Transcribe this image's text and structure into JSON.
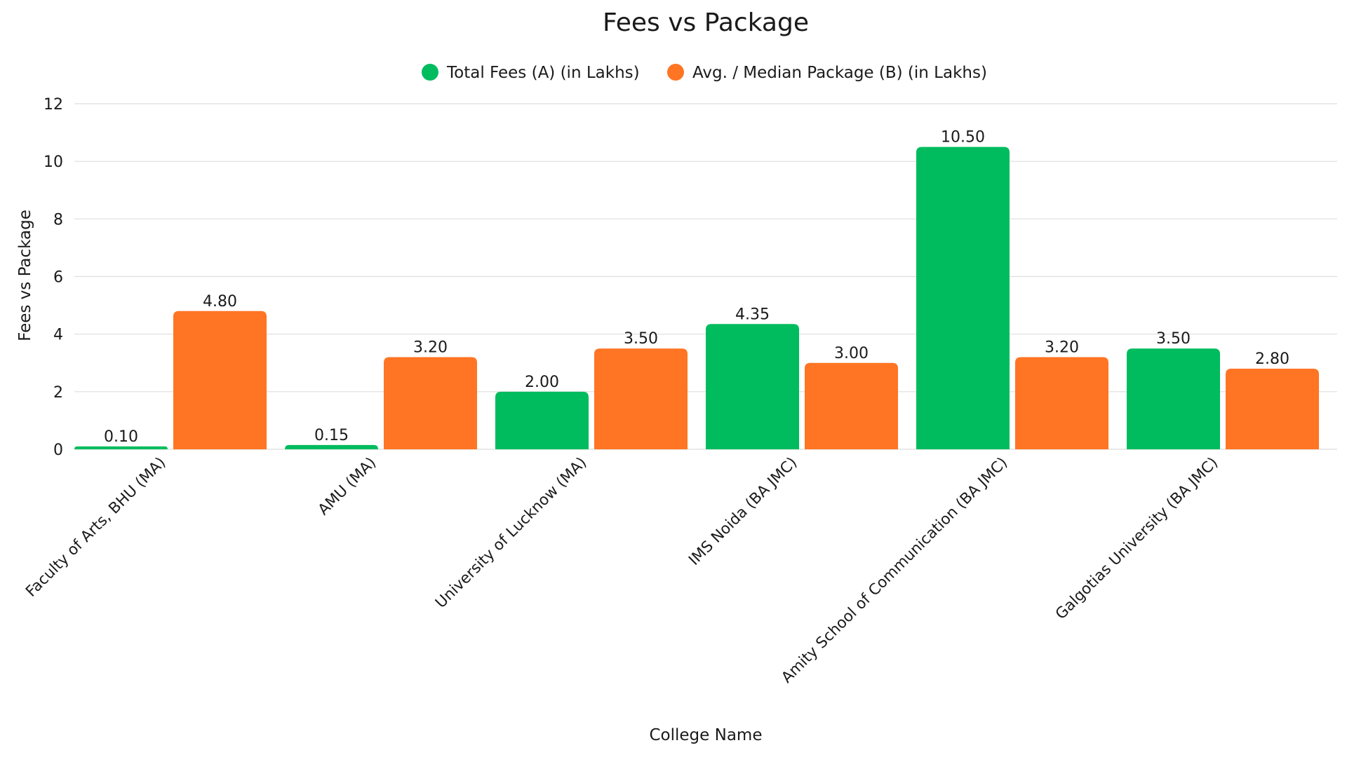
{
  "chart_data": {
    "type": "bar",
    "title": "Fees vs Package",
    "xlabel": "College Name",
    "ylabel": "Fees vs Package",
    "ylim": [
      0,
      12
    ],
    "yticks": [
      "0",
      "2",
      "4",
      "6",
      "8",
      "10",
      "12"
    ],
    "grid": true,
    "legend_position": "top-center",
    "categories": [
      "Faculty of Arts, BHU (MA)",
      "AMU (MA)",
      "University of Lucknow (MA)",
      "IMS Noida (BA JMC)",
      "Amity School of Communication (BA JMC)",
      "Galgotias University (BA JMC)"
    ],
    "series": [
      {
        "name": "Total Fees (A) (in Lakhs)",
        "color": "#00BC5E",
        "values": [
          0.1,
          0.15,
          2.0,
          4.35,
          10.5,
          3.5
        ],
        "labels": [
          "0.10",
          "0.15",
          "2.00",
          "4.35",
          "10.50",
          "3.50"
        ]
      },
      {
        "name": "Avg. / Median Package (B) (in Lakhs)",
        "color": "#FF7523",
        "values": [
          4.8,
          3.2,
          3.5,
          3.0,
          3.2,
          2.8
        ],
        "labels": [
          "4.80",
          "3.20",
          "3.50",
          "3.00",
          "3.20",
          "2.80"
        ]
      }
    ]
  }
}
